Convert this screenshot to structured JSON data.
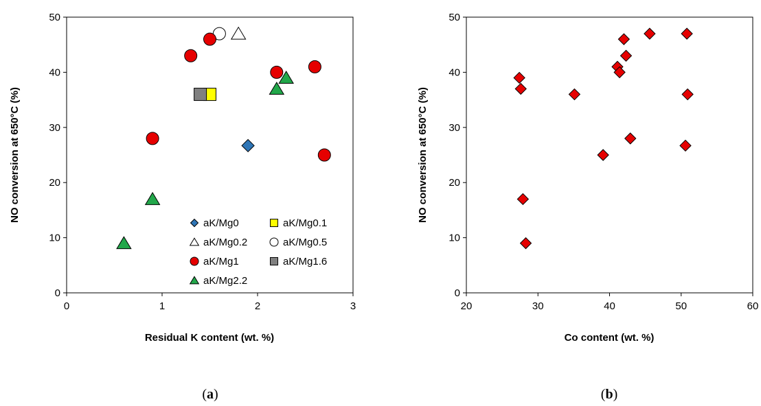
{
  "captions": {
    "a_open": "(",
    "a_letter": "a",
    "a_close": ")",
    "b_open": "(",
    "b_letter": "b",
    "b_close": ")"
  },
  "chart_data": [
    {
      "type": "scatter",
      "xlabel": "Residual K content (wt. %)",
      "ylabel": "NO conversion at 650°C (%)",
      "xlim": [
        0,
        3
      ],
      "ylim": [
        0,
        50
      ],
      "xticks": [
        0,
        1,
        2,
        3
      ],
      "yticks": [
        0,
        10,
        20,
        30,
        40,
        50
      ],
      "grid": false,
      "legend_position": "bottom-right",
      "series": [
        {
          "name": "aK/Mg0",
          "marker": "diamond",
          "color": "#2E75B6",
          "points": [
            [
              1.9,
              26.7
            ]
          ]
        },
        {
          "name": "aK/Mg0.1",
          "marker": "square",
          "color": "#FFFF00",
          "points": [
            [
              1.5,
              36
            ]
          ]
        },
        {
          "name": "aK/Mg0.2",
          "marker": "triangle",
          "color": "#FFFFFF",
          "points": [
            [
              1.8,
              47
            ]
          ]
        },
        {
          "name": "aK/Mg0.5",
          "marker": "circle",
          "color": "#FFFFFF",
          "points": [
            [
              1.6,
              47
            ]
          ]
        },
        {
          "name": "aK/Mg1",
          "marker": "circle",
          "color": "#E60000",
          "points": [
            [
              0.9,
              28
            ],
            [
              1.3,
              43
            ],
            [
              1.5,
              46
            ],
            [
              2.2,
              40
            ],
            [
              2.6,
              41
            ],
            [
              2.7,
              25
            ]
          ]
        },
        {
          "name": "aK/Mg1.6",
          "marker": "square",
          "color": "#808080",
          "points": [
            [
              1.4,
              36
            ]
          ]
        },
        {
          "name": "aK/Mg2.2",
          "marker": "triangle",
          "color": "#22A74A",
          "points": [
            [
              0.6,
              9
            ],
            [
              0.9,
              17
            ],
            [
              2.2,
              37
            ],
            [
              2.3,
              39
            ]
          ]
        }
      ]
    },
    {
      "type": "scatter",
      "xlabel": "Co content (wt. %)",
      "ylabel": "NO conversion  at 650°C (%)",
      "xlim": [
        20,
        60
      ],
      "ylim": [
        0,
        50
      ],
      "xticks": [
        20,
        30,
        40,
        50,
        60
      ],
      "yticks": [
        0,
        10,
        20,
        30,
        40,
        50
      ],
      "grid": false,
      "series": [
        {
          "marker": "diamond",
          "color": "#E60000",
          "points": [
            [
              27.4,
              39
            ],
            [
              27.6,
              37
            ],
            [
              27.9,
              17
            ],
            [
              28.3,
              9
            ],
            [
              35.1,
              36
            ],
            [
              39.1,
              25
            ],
            [
              41.1,
              41
            ],
            [
              41.4,
              40
            ],
            [
              42.0,
              46
            ],
            [
              42.3,
              43
            ],
            [
              42.9,
              28
            ],
            [
              45.6,
              47
            ],
            [
              50.6,
              26.7
            ],
            [
              50.8,
              47
            ],
            [
              50.9,
              36
            ]
          ]
        }
      ]
    }
  ]
}
